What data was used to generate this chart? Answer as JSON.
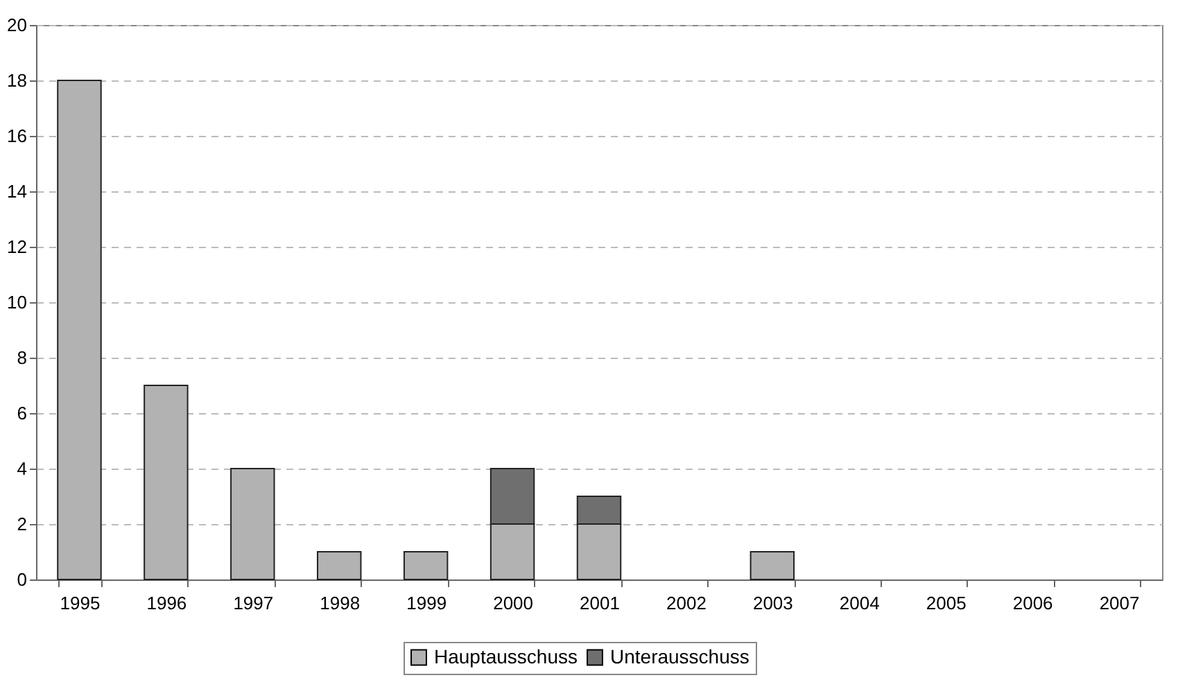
{
  "chart_data": {
    "type": "bar",
    "stacked": true,
    "categories": [
      "1995",
      "1996",
      "1997",
      "1998",
      "1999",
      "2000",
      "2001",
      "2002",
      "2003",
      "2004",
      "2005",
      "2006",
      "2007"
    ],
    "series": [
      {
        "name": "Hauptausschuss",
        "color": "#b2b2b2",
        "values": [
          18,
          7,
          4,
          1,
          1,
          2,
          2,
          null,
          1,
          null,
          null,
          null,
          null
        ]
      },
      {
        "name": "Unterausschuss",
        "color": "#6f6f6f",
        "values": [
          null,
          null,
          null,
          null,
          null,
          2,
          1,
          null,
          null,
          null,
          null,
          null,
          null
        ]
      }
    ],
    "ylim": [
      0,
      20
    ],
    "yticks": [
      0,
      2,
      4,
      6,
      8,
      10,
      12,
      14,
      16,
      18,
      20
    ],
    "grid": "y",
    "legend": "bottom"
  }
}
